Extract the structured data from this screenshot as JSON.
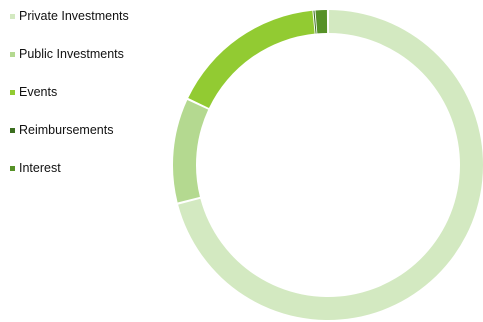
{
  "chart_data": {
    "type": "pie",
    "categories": [
      "Private Investments",
      "Public Investments",
      "Events",
      "Reimbursements",
      "Interest"
    ],
    "values": [
      71,
      11,
      16.5,
      0.1,
      1.4
    ],
    "colors": [
      "#d3e9c1",
      "#b4d990",
      "#92cb32",
      "#3b6e1f",
      "#569127"
    ],
    "legend_position": "left",
    "title": ""
  }
}
